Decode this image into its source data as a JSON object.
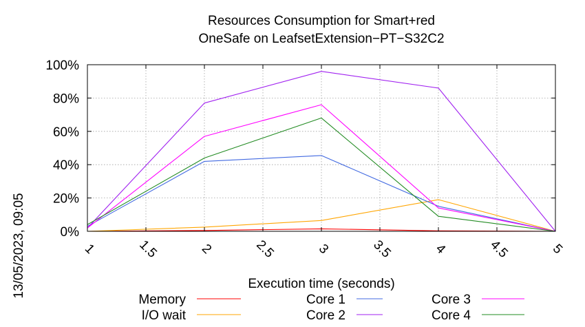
{
  "chart_data": {
    "type": "line",
    "title_lines": [
      "Resources Consumption for Smart+red",
      "OneSafe on LeafsetExtension−PT−S32C2"
    ],
    "xlabel": "Execution time (seconds)",
    "side_label": "13/05/2023, 09:05",
    "xlim": [
      1,
      5
    ],
    "ylim": [
      0,
      100
    ],
    "x_ticks": [
      1,
      1.5,
      2,
      2.5,
      3,
      3.5,
      4,
      4.5,
      5
    ],
    "x_tick_labels": [
      "1",
      "1.5",
      "2",
      "2.5",
      "3",
      "3.5",
      "4",
      "4.5",
      "5"
    ],
    "y_ticks": [
      0,
      20,
      40,
      60,
      80,
      100
    ],
    "y_tick_labels": [
      "0%",
      "20%",
      "40%",
      "60%",
      "80%",
      "100%"
    ],
    "grid": true,
    "legend_placement": "bottom",
    "x": [
      1,
      2,
      3,
      4,
      5
    ],
    "series": [
      {
        "name": "Memory",
        "color": "#ff0000",
        "values": [
          0,
          0.5,
          1.5,
          0.3,
          0
        ]
      },
      {
        "name": "I/O wait",
        "color": "#ffa500",
        "values": [
          0,
          2.5,
          6.5,
          19,
          0
        ]
      },
      {
        "name": "Core 1",
        "color": "#4169e1",
        "values": [
          3,
          42,
          45.5,
          15,
          0
        ]
      },
      {
        "name": "Core 2",
        "color": "#a020f0",
        "values": [
          2,
          77,
          96,
          86,
          0
        ]
      },
      {
        "name": "Core 3",
        "color": "#ff00ff",
        "values": [
          2,
          57,
          76,
          14,
          0
        ]
      },
      {
        "name": "Core 4",
        "color": "#228b22",
        "values": [
          4,
          44,
          68,
          9,
          0
        ]
      }
    ]
  }
}
